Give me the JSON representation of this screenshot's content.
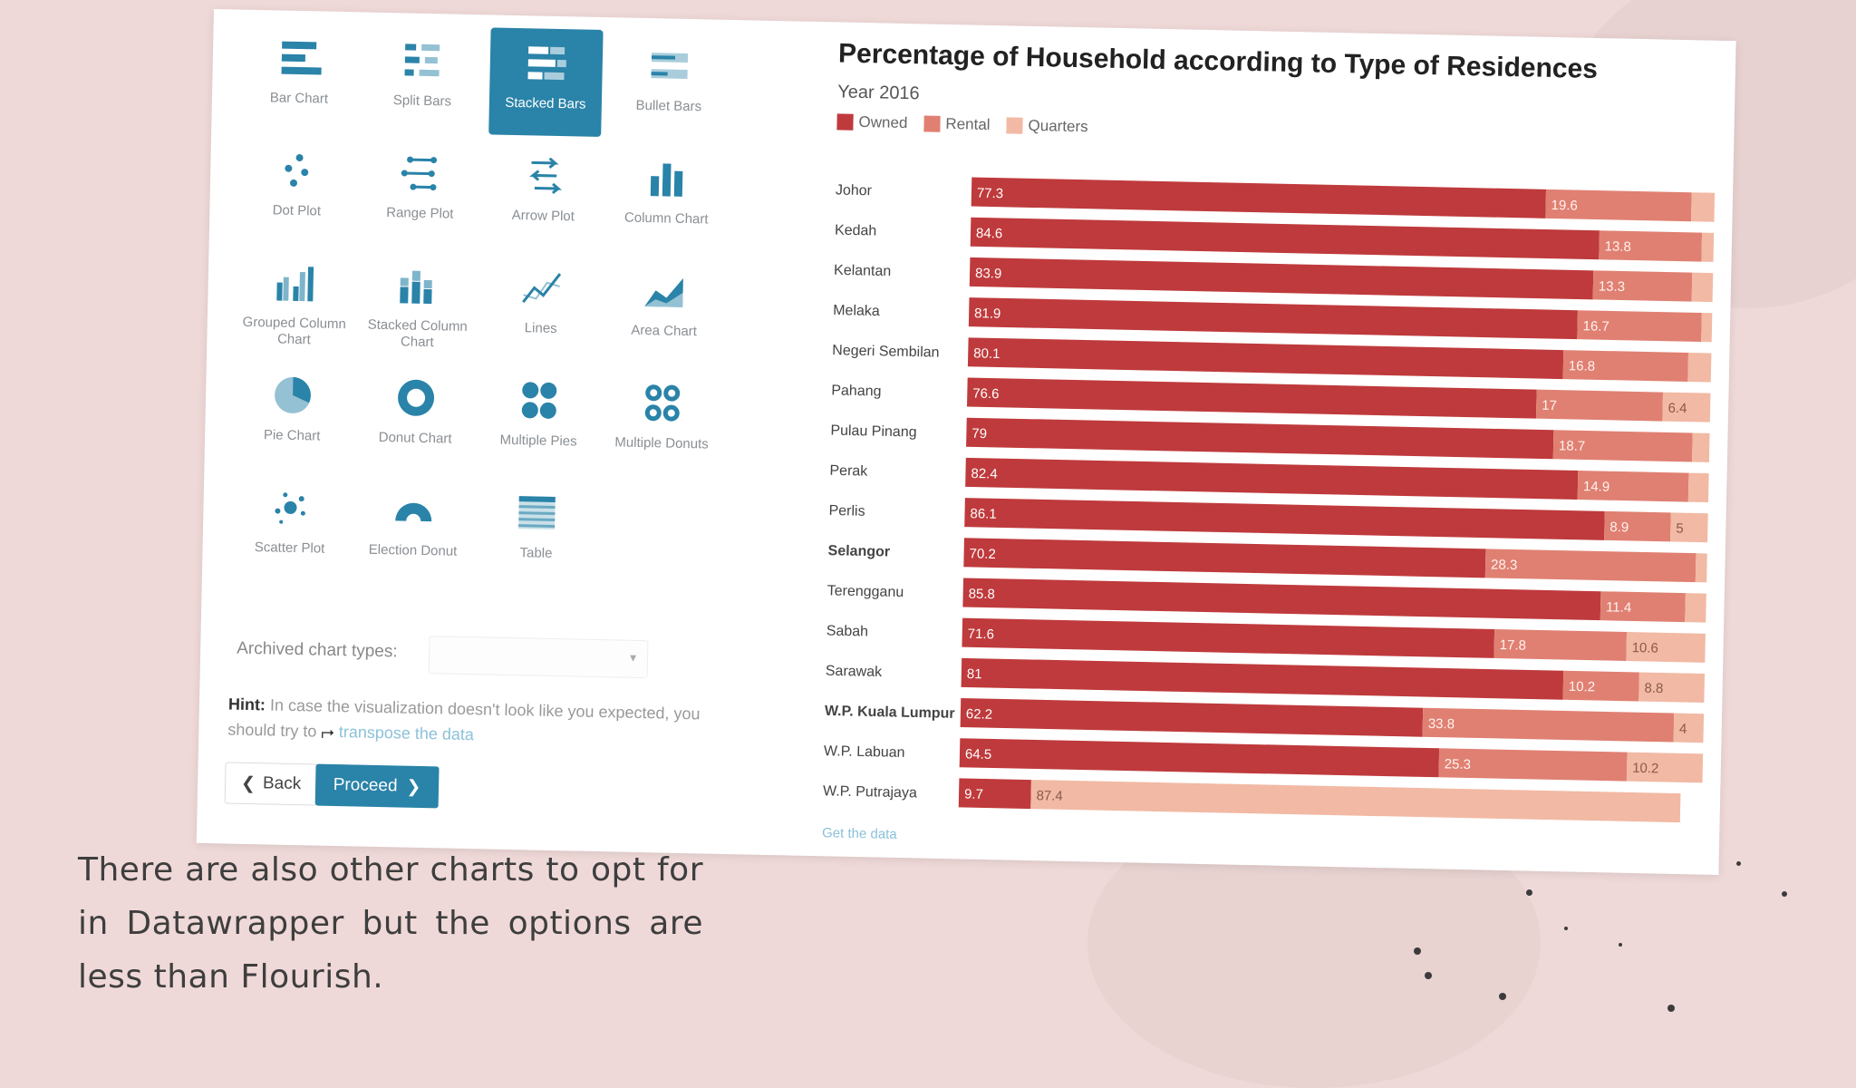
{
  "caption": "There are also other charts to opt for in Datawrapper but the options are less than Flourish.",
  "chart_types": [
    {
      "label": "Bar Chart",
      "icon": "bar-chart-icon",
      "selected": false
    },
    {
      "label": "Split Bars",
      "icon": "split-bars-icon",
      "selected": false
    },
    {
      "label": "Stacked Bars",
      "icon": "stacked-bars-icon",
      "selected": true
    },
    {
      "label": "Bullet Bars",
      "icon": "bullet-bars-icon",
      "selected": false
    },
    {
      "label": "Dot Plot",
      "icon": "dot-plot-icon",
      "selected": false
    },
    {
      "label": "Range Plot",
      "icon": "range-plot-icon",
      "selected": false
    },
    {
      "label": "Arrow Plot",
      "icon": "arrow-plot-icon",
      "selected": false
    },
    {
      "label": "Column Chart",
      "icon": "column-chart-icon",
      "selected": false
    },
    {
      "label": "Grouped Column Chart",
      "icon": "grouped-column-chart-icon",
      "selected": false
    },
    {
      "label": "Stacked Column Chart",
      "icon": "stacked-column-chart-icon",
      "selected": false
    },
    {
      "label": "Lines",
      "icon": "lines-icon",
      "selected": false
    },
    {
      "label": "Area Chart",
      "icon": "area-chart-icon",
      "selected": false
    },
    {
      "label": "Pie Chart",
      "icon": "pie-chart-icon",
      "selected": false
    },
    {
      "label": "Donut Chart",
      "icon": "donut-chart-icon",
      "selected": false
    },
    {
      "label": "Multiple Pies",
      "icon": "multiple-pies-icon",
      "selected": false
    },
    {
      "label": "Multiple Donuts",
      "icon": "multiple-donuts-icon",
      "selected": false
    },
    {
      "label": "Scatter Plot",
      "icon": "scatter-plot-icon",
      "selected": false
    },
    {
      "label": "Election Donut",
      "icon": "election-donut-icon",
      "selected": false
    },
    {
      "label": "Table",
      "icon": "table-icon",
      "selected": false
    }
  ],
  "archived": {
    "label": "Archived chart types:",
    "value": ""
  },
  "hint": {
    "bold": "Hint:",
    "text": "In case the visualization doesn't look like you expected, you should try to",
    "link": "transpose the data"
  },
  "buttons": {
    "back": "Back",
    "proceed": "Proceed"
  },
  "get_data": "Get the data",
  "colors": {
    "accent": "#2a83a8",
    "owned": "#bf3a3c",
    "rental": "#e08072",
    "quarters": "#f2b9a4"
  },
  "chart_data": {
    "type": "bar",
    "orientation": "horizontal-stacked",
    "title": "Percentage of Household according to Type of Residences",
    "subtitle": "Year 2016",
    "categories": [
      "Johor",
      "Kedah",
      "Kelantan",
      "Melaka",
      "Negeri Sembilan",
      "Pahang",
      "Pulau Pinang",
      "Perak",
      "Perlis",
      "Selangor",
      "Terengganu",
      "Sabah",
      "Sarawak",
      "W.P. Kuala Lumpur",
      "W.P. Labuan",
      "W.P. Putrajaya"
    ],
    "bold_categories": [
      "Selangor",
      "W.P. Kuala Lumpur"
    ],
    "series": [
      {
        "name": "Owned",
        "color": "#bf3a3c",
        "values": [
          77.3,
          84.6,
          83.9,
          81.9,
          80.1,
          76.6,
          79,
          82.4,
          86.1,
          70.2,
          85.8,
          71.6,
          81,
          62.2,
          64.5,
          9.7
        ]
      },
      {
        "name": "Rental",
        "color": "#e08072",
        "values": [
          19.6,
          13.8,
          13.3,
          16.7,
          16.8,
          17,
          18.7,
          14.9,
          8.9,
          28.3,
          11.4,
          17.8,
          10.2,
          33.8,
          25.3,
          0
        ]
      },
      {
        "name": "Quarters",
        "color": "#f2b9a4",
        "values": [
          3.1,
          1.6,
          2.8,
          1.4,
          3.1,
          6.4,
          2.3,
          2.7,
          5,
          1.5,
          2.8,
          10.6,
          8.8,
          4,
          10.2,
          87.4
        ]
      }
    ],
    "value_labels": [
      [
        "77.3",
        "19.6",
        ""
      ],
      [
        "84.6",
        "13.8",
        ""
      ],
      [
        "83.9",
        "13.3",
        ""
      ],
      [
        "81.9",
        "16.7",
        ""
      ],
      [
        "80.1",
        "16.8",
        ""
      ],
      [
        "76.6",
        "17",
        "6.4"
      ],
      [
        "79",
        "18.7",
        ""
      ],
      [
        "82.4",
        "14.9",
        ""
      ],
      [
        "86.1",
        "8.9",
        "5"
      ],
      [
        "70.2",
        "28.3",
        ""
      ],
      [
        "85.8",
        "11.4",
        ""
      ],
      [
        "71.6",
        "17.8",
        "10.6"
      ],
      [
        "81",
        "10.2",
        "8.8"
      ],
      [
        "62.2",
        "33.8",
        "4"
      ],
      [
        "64.5",
        "25.3",
        "10.2"
      ],
      [
        "9.7",
        "",
        "87.4"
      ]
    ],
    "xlim": [
      0,
      100
    ],
    "legend": "top-left"
  }
}
